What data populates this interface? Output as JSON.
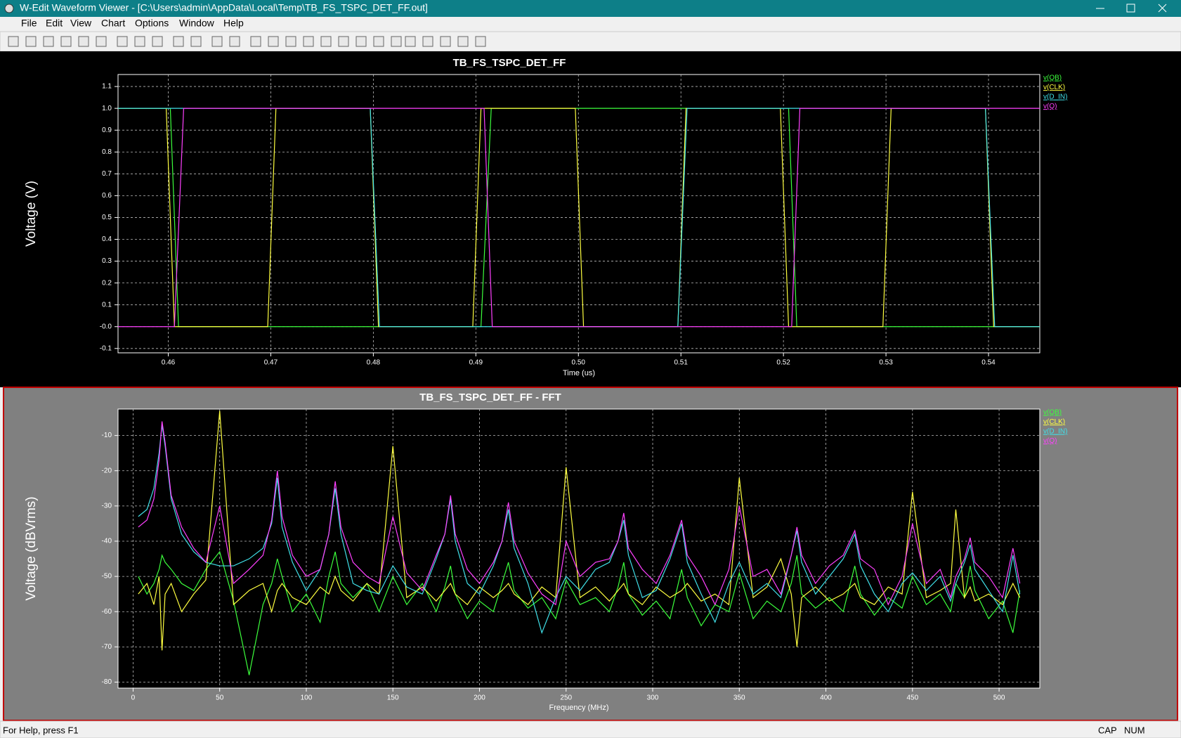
{
  "window": {
    "title": "W-Edit Waveform Viewer - [C:\\Users\\admin\\AppData\\Local\\Temp\\TB_FS_TSPC_DET_FF.out]"
  },
  "menu": [
    "File",
    "Edit",
    "View",
    "Chart",
    "Options",
    "Window",
    "Help"
  ],
  "status_bar": {
    "help": "For Help, press F1",
    "indicators": [
      "CAP",
      "NUM"
    ]
  },
  "chart_data": [
    {
      "type": "line",
      "title": "TB_FS_TSPC_DET_FF",
      "x_label": "Time (us)",
      "y_label": "Voltage (V)",
      "xlim": [
        0.4551,
        0.545
      ],
      "ylim": [
        -0.12,
        1.155
      ],
      "xticks": [
        0.46,
        0.47,
        0.48,
        0.49,
        {
          "value": 0.5,
          "label": "0.50"
        },
        0.51,
        0.52,
        0.53,
        0.54
      ],
      "yticks": [
        -0.1,
        {
          "value": 0,
          "label": "-0.0"
        },
        0.1,
        0.2,
        0.3,
        0.4,
        0.5,
        0.6,
        0.7,
        0.8,
        0.9,
        {
          "value": 1,
          "label": "1.0"
        },
        1.1
      ],
      "grid": true,
      "series": [
        {
          "name": "v(QB)",
          "color": "#3cff3c",
          "x": [
            0.4551,
            0.4602,
            0.461,
            0.4905,
            0.4915,
            0.5205,
            0.5213,
            0.545
          ],
          "values": [
            1,
            1,
            0,
            0,
            1,
            1,
            0,
            0
          ]
        },
        {
          "name": "v(CLK)",
          "color": "#ffff40",
          "x": [
            0.4551,
            0.4598,
            0.4606,
            0.4697,
            0.4705,
            0.4797,
            0.4805,
            0.4897,
            0.4905,
            0.4997,
            0.5005,
            0.5097,
            0.5105,
            0.5197,
            0.5205,
            0.5297,
            0.5305,
            0.5397,
            0.5405,
            0.545
          ],
          "values": [
            1,
            1,
            0,
            0,
            1,
            1,
            0,
            0,
            1,
            1,
            0,
            0,
            1,
            1,
            0,
            0,
            1,
            1,
            0,
            0
          ]
        },
        {
          "name": "v(D_IN)",
          "color": "#40e0e8",
          "x": [
            0.4551,
            0.4797,
            0.4806,
            0.5097,
            0.5106,
            0.5397,
            0.5406,
            0.545
          ],
          "values": [
            1,
            1,
            0,
            0,
            1,
            1,
            0,
            0
          ]
        },
        {
          "name": "v(Q)",
          "color": "#ff40ff",
          "x": [
            0.4551,
            0.4606,
            0.4615,
            0.4908,
            0.4916,
            0.5208,
            0.5216,
            0.545
          ],
          "values": [
            0,
            0,
            1,
            1,
            0,
            0,
            1,
            1
          ]
        }
      ]
    },
    {
      "type": "line",
      "title": "TB_FS_TSPC_DET_FF - FFT",
      "x_label": "Frequency (MHz)",
      "y_label": "Voltage (dBVrms)",
      "xlim": [
        -8.7,
        523.5
      ],
      "ylim": [
        -81.7,
        -2.5
      ],
      "xticks": [
        0,
        50,
        100,
        150,
        200,
        250,
        300,
        350,
        400,
        450,
        500
      ],
      "yticks": [
        -80,
        -70,
        -60,
        -50,
        -40,
        -30,
        -20,
        -10
      ],
      "grid": true,
      "x": [
        3,
        8,
        12,
        15,
        16.7,
        18.5,
        22,
        28,
        35,
        42,
        50,
        58,
        67,
        75,
        80,
        83.3,
        86,
        92,
        100,
        108,
        113,
        116.7,
        120,
        127,
        135,
        142,
        150,
        158,
        167,
        175,
        180,
        183.3,
        186,
        193,
        200,
        208,
        213,
        216.7,
        220,
        228,
        236,
        244,
        250,
        258,
        267,
        275,
        280,
        283.3,
        286,
        294,
        302,
        310,
        316.7,
        320,
        328,
        336,
        344,
        350,
        358,
        366,
        374,
        380,
        383.3,
        386,
        394,
        402,
        410,
        416.7,
        420,
        428,
        436,
        444,
        450,
        458,
        466,
        472,
        475,
        480,
        483.3,
        486,
        494,
        502,
        508,
        512
      ],
      "series": [
        {
          "name": "v(QB)",
          "color": "#3cff3c",
          "values": [
            -50,
            -55,
            -52,
            -48,
            -44,
            -46,
            -48,
            -52,
            -54,
            -48,
            -43,
            -57,
            -78,
            -58,
            -52,
            -45,
            -50,
            -60,
            -55,
            -63,
            -50,
            -43,
            -52,
            -56,
            -52,
            -60,
            -50,
            -58,
            -52,
            -60,
            -53,
            -47,
            -55,
            -62,
            -57,
            -60,
            -52,
            -46,
            -54,
            -59,
            -56,
            -62,
            -51,
            -58,
            -56,
            -60,
            -53,
            -46,
            -55,
            -61,
            -57,
            -62,
            -48,
            -56,
            -64,
            -58,
            -60,
            -49,
            -62,
            -57,
            -60,
            -52,
            -44,
            -55,
            -59,
            -56,
            -60,
            -47,
            -55,
            -61,
            -56,
            -59,
            -50,
            -58,
            -55,
            -60,
            -52,
            -56,
            -47,
            -54,
            -62,
            -57,
            -66,
            -54
          ]
        },
        {
          "name": "v(CLK)",
          "color": "#ffff40",
          "values": [
            -55,
            -52,
            -58,
            -50,
            -71,
            -55,
            -52,
            -60,
            -55,
            -51,
            -3,
            -58,
            -54,
            -52,
            -60,
            -54,
            -52,
            -56,
            -58,
            -53,
            -55,
            -50,
            -54,
            -57,
            -52,
            -55,
            -13,
            -56,
            -53,
            -57,
            -54,
            -52,
            -55,
            -58,
            -53,
            -56,
            -54,
            -52,
            -55,
            -58,
            -53,
            -56,
            -19,
            -56,
            -53,
            -57,
            -54,
            -52,
            -55,
            -58,
            -53,
            -56,
            -54,
            -52,
            -57,
            -55,
            -58,
            -22,
            -56,
            -53,
            -45,
            -55,
            -70,
            -56,
            -53,
            -57,
            -55,
            -52,
            -56,
            -58,
            -53,
            -55,
            -26,
            -56,
            -54,
            -52,
            -31,
            -56,
            -53,
            -57,
            -55,
            -58,
            -52,
            -56
          ]
        },
        {
          "name": "v(D_IN)",
          "color": "#40e0e8",
          "values": [
            -33,
            -31,
            -25,
            -15,
            -7,
            -13,
            -28,
            -38,
            -43,
            -46,
            -47,
            -47,
            -45,
            -42,
            -35,
            -22,
            -36,
            -46,
            -54,
            -48,
            -38,
            -25,
            -38,
            -52,
            -54,
            -55,
            -47,
            -53,
            -55,
            -45,
            -38,
            -28,
            -40,
            -52,
            -55,
            -47,
            -40,
            -31,
            -42,
            -52,
            -66,
            -56,
            -50,
            -54,
            -48,
            -46,
            -40,
            -34,
            -44,
            -56,
            -54,
            -45,
            -35,
            -46,
            -55,
            -63,
            -52,
            -46,
            -55,
            -52,
            -56,
            -44,
            -37,
            -46,
            -55,
            -50,
            -45,
            -38,
            -47,
            -55,
            -60,
            -52,
            -49,
            -54,
            -50,
            -57,
            -52,
            -46,
            -41,
            -48,
            -54,
            -60,
            -44,
            -55
          ]
        },
        {
          "name": "v(Q)",
          "color": "#ff40ff",
          "values": [
            -36,
            -34,
            -28,
            -17,
            -6,
            -12,
            -27,
            -36,
            -42,
            -46,
            -30,
            -52,
            -48,
            -44,
            -34,
            -20,
            -33,
            -44,
            -50,
            -48,
            -38,
            -23,
            -36,
            -46,
            -50,
            -52,
            -33,
            -49,
            -54,
            -44,
            -38,
            -27,
            -38,
            -48,
            -52,
            -46,
            -40,
            -29,
            -40,
            -49,
            -55,
            -58,
            -40,
            -50,
            -46,
            -45,
            -40,
            -32,
            -42,
            -48,
            -52,
            -44,
            -34,
            -44,
            -50,
            -58,
            -48,
            -30,
            -50,
            -48,
            -55,
            -44,
            -36,
            -44,
            -52,
            -47,
            -44,
            -37,
            -45,
            -48,
            -58,
            -50,
            -35,
            -52,
            -48,
            -56,
            -50,
            -45,
            -39,
            -46,
            -50,
            -56,
            -42,
            -52
          ]
        }
      ]
    }
  ]
}
